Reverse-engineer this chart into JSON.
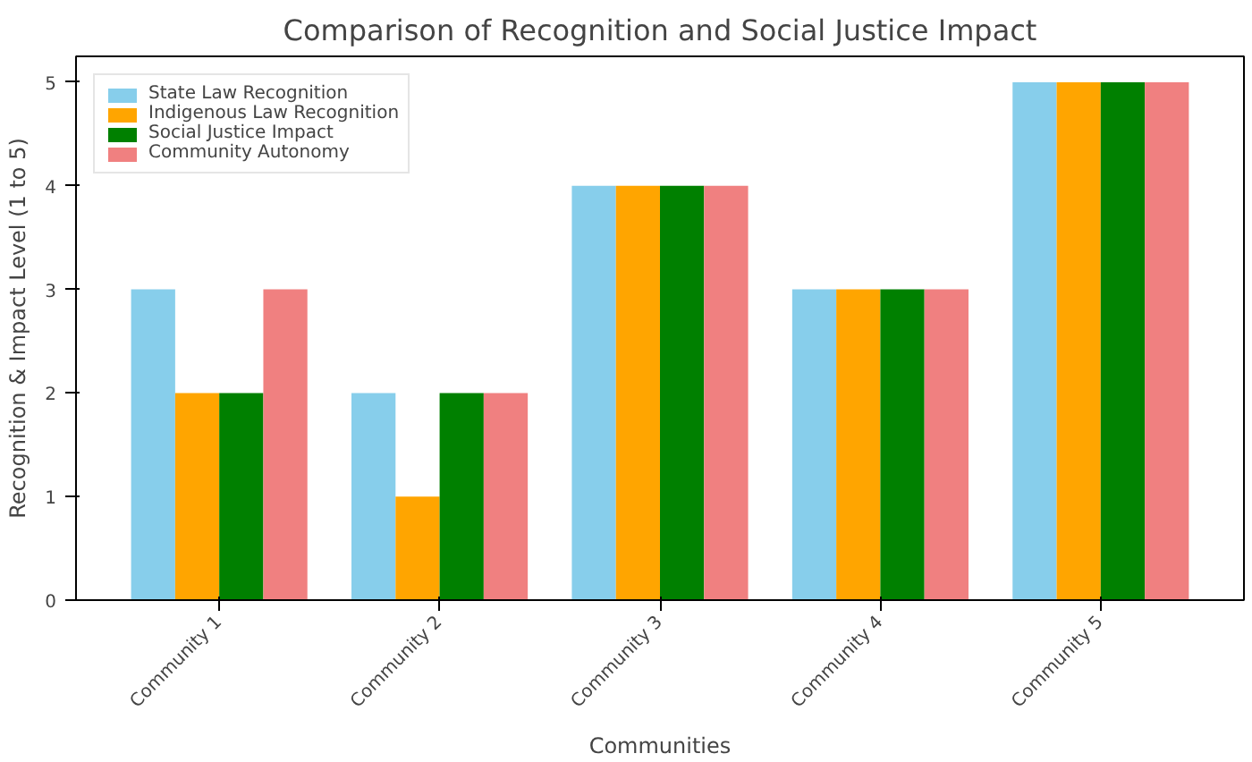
{
  "chart_data": {
    "type": "bar",
    "title": "Comparison of Recognition and Social Justice Impact",
    "xlabel": "Communities",
    "ylabel": "Recognition & Impact Level (1 to 5)",
    "categories": [
      "Community 1",
      "Community 2",
      "Community 3",
      "Community 4",
      "Community 5"
    ],
    "series": [
      {
        "name": "State Law Recognition",
        "color": "#87ceeb",
        "values": [
          3,
          2,
          4,
          3,
          5
        ]
      },
      {
        "name": "Indigenous Law Recognition",
        "color": "#ffa500",
        "values": [
          2,
          1,
          4,
          3,
          5
        ]
      },
      {
        "name": "Social Justice Impact",
        "color": "#008000",
        "values": [
          2,
          2,
          4,
          3,
          5
        ]
      },
      {
        "name": "Community Autonomy",
        "color": "#f08080",
        "values": [
          3,
          2,
          4,
          3,
          5
        ]
      }
    ],
    "ylim": [
      0,
      5.25
    ],
    "yticks": [
      0,
      1,
      2,
      3,
      4,
      5
    ],
    "legend": "top left",
    "grid": false
  }
}
